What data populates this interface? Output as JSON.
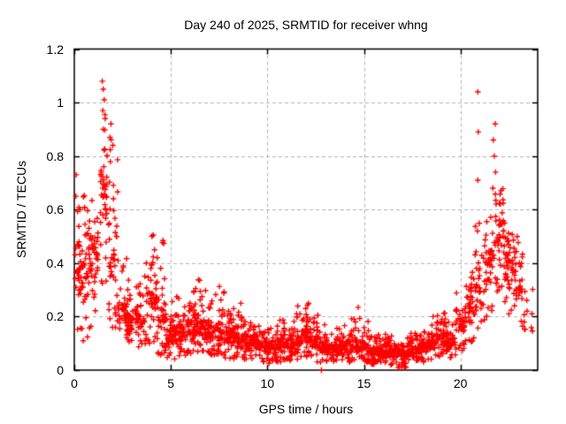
{
  "chart_data": {
    "type": "scatter",
    "title": "Day 240 of 2025, SRMTID for receiver whng",
    "xlabel": "GPS time / hours",
    "ylabel": "SRMTID / TECUs",
    "xlim": [
      0,
      24
    ],
    "ylim": [
      0,
      1.2
    ],
    "xticks": [
      0,
      5,
      10,
      15,
      20
    ],
    "yticks": [
      0,
      0.2,
      0.4,
      0.6,
      0.8,
      1,
      1.2
    ],
    "grid": true,
    "legend": false,
    "marker": "plus",
    "marker_color": "#ff0000",
    "grid_color": "#b3b3b3",
    "axis_color": "#000000",
    "background_color": "#ffffff",
    "series_name": "SRMTID",
    "seed": 20250240,
    "density_bins_comment": "Each bin = [x_start_hr, x_end_hr, n_points, y_min, y_typical_low, y_typical_high, y_max] read from the plotted point cloud",
    "density_bins": [
      [
        0.0,
        0.25,
        22,
        0.13,
        0.2,
        0.45,
        0.62
      ],
      [
        0.25,
        0.75,
        48,
        0.1,
        0.22,
        0.5,
        0.67
      ],
      [
        0.75,
        1.25,
        52,
        0.15,
        0.3,
        0.55,
        0.72
      ],
      [
        1.35,
        1.7,
        42,
        0.32,
        0.5,
        0.88,
        1.08
      ],
      [
        1.75,
        2.25,
        45,
        0.15,
        0.25,
        0.6,
        0.9
      ],
      [
        2.25,
        2.75,
        40,
        0.1,
        0.14,
        0.3,
        0.46
      ],
      [
        2.75,
        3.25,
        40,
        0.08,
        0.12,
        0.26,
        0.38
      ],
      [
        3.25,
        3.75,
        40,
        0.08,
        0.12,
        0.28,
        0.42
      ],
      [
        3.75,
        4.25,
        45,
        0.1,
        0.15,
        0.38,
        0.54
      ],
      [
        4.25,
        4.75,
        45,
        0.05,
        0.1,
        0.3,
        0.5
      ],
      [
        4.75,
        5.25,
        48,
        0.03,
        0.07,
        0.18,
        0.26
      ],
      [
        5.25,
        5.75,
        48,
        0.04,
        0.08,
        0.2,
        0.3
      ],
      [
        5.75,
        6.25,
        48,
        0.05,
        0.08,
        0.22,
        0.32
      ],
      [
        6.25,
        6.75,
        48,
        0.05,
        0.1,
        0.24,
        0.34
      ],
      [
        6.75,
        7.25,
        48,
        0.05,
        0.08,
        0.2,
        0.3
      ],
      [
        7.25,
        7.75,
        48,
        0.05,
        0.08,
        0.2,
        0.33
      ],
      [
        7.75,
        8.25,
        48,
        0.04,
        0.07,
        0.18,
        0.3
      ],
      [
        8.25,
        8.75,
        48,
        0.04,
        0.07,
        0.16,
        0.25
      ],
      [
        8.75,
        9.25,
        48,
        0.04,
        0.06,
        0.15,
        0.23
      ],
      [
        9.25,
        9.75,
        48,
        0.03,
        0.06,
        0.13,
        0.19
      ],
      [
        9.75,
        10.25,
        48,
        0.02,
        0.05,
        0.12,
        0.17
      ],
      [
        10.25,
        10.75,
        48,
        0.03,
        0.05,
        0.12,
        0.19
      ],
      [
        10.75,
        11.25,
        48,
        0.03,
        0.06,
        0.13,
        0.2
      ],
      [
        11.25,
        11.75,
        48,
        0.04,
        0.06,
        0.15,
        0.24
      ],
      [
        11.75,
        12.25,
        52,
        0.04,
        0.07,
        0.18,
        0.28
      ],
      [
        12.25,
        12.75,
        46,
        0.02,
        0.06,
        0.14,
        0.22
      ],
      [
        12.75,
        13.25,
        46,
        0.03,
        0.05,
        0.12,
        0.18
      ],
      [
        13.25,
        13.75,
        46,
        0.03,
        0.05,
        0.11,
        0.16
      ],
      [
        13.75,
        14.25,
        46,
        0.03,
        0.05,
        0.12,
        0.18
      ],
      [
        14.25,
        14.75,
        46,
        0.03,
        0.05,
        0.13,
        0.25
      ],
      [
        14.75,
        15.25,
        46,
        0.03,
        0.05,
        0.12,
        0.2
      ],
      [
        15.25,
        15.75,
        46,
        0.02,
        0.04,
        0.1,
        0.15
      ],
      [
        15.75,
        16.25,
        46,
        0.02,
        0.04,
        0.1,
        0.14
      ],
      [
        16.25,
        16.75,
        46,
        0.02,
        0.04,
        0.09,
        0.13
      ],
      [
        16.75,
        17.25,
        46,
        0.01,
        0.03,
        0.09,
        0.12
      ],
      [
        17.25,
        17.75,
        46,
        0.02,
        0.04,
        0.1,
        0.14
      ],
      [
        17.75,
        18.25,
        46,
        0.03,
        0.05,
        0.11,
        0.16
      ],
      [
        18.25,
        18.75,
        44,
        0.04,
        0.06,
        0.14,
        0.2
      ],
      [
        18.75,
        19.25,
        42,
        0.05,
        0.08,
        0.17,
        0.22
      ],
      [
        19.25,
        19.75,
        40,
        0.04,
        0.06,
        0.13,
        0.18
      ],
      [
        19.75,
        20.25,
        40,
        0.07,
        0.1,
        0.22,
        0.3
      ],
      [
        20.25,
        20.75,
        38,
        0.1,
        0.14,
        0.3,
        0.38
      ],
      [
        20.75,
        21.25,
        34,
        0.15,
        0.2,
        0.38,
        0.55
      ],
      [
        21.25,
        21.75,
        38,
        0.2,
        0.25,
        0.5,
        0.7
      ],
      [
        21.75,
        22.25,
        48,
        0.28,
        0.35,
        0.62,
        0.68
      ],
      [
        22.25,
        22.75,
        44,
        0.2,
        0.28,
        0.48,
        0.56
      ],
      [
        22.75,
        23.25,
        34,
        0.15,
        0.2,
        0.42,
        0.5
      ],
      [
        23.25,
        23.75,
        10,
        0.14,
        0.16,
        0.26,
        0.32
      ]
    ],
    "outliers_comment": "Distinct isolated points readable from the image [x_hr, y_tecus]",
    "outliers": [
      [
        0.1,
        0.73
      ],
      [
        0.08,
        0.65
      ],
      [
        0.3,
        0.6
      ],
      [
        1.45,
        1.08
      ],
      [
        1.5,
        1.05
      ],
      [
        1.55,
        1.01
      ],
      [
        1.48,
        0.97
      ],
      [
        1.6,
        0.94
      ],
      [
        1.9,
        0.92
      ],
      [
        1.85,
        0.87
      ],
      [
        2.0,
        0.84
      ],
      [
        1.7,
        0.8
      ],
      [
        12.8,
        0.0
      ],
      [
        20.9,
        1.04
      ],
      [
        20.92,
        0.89
      ],
      [
        20.9,
        0.71
      ],
      [
        20.88,
        0.52
      ],
      [
        21.8,
        0.92
      ],
      [
        21.7,
        0.86
      ],
      [
        21.75,
        0.8
      ],
      [
        21.82,
        0.74
      ],
      [
        21.68,
        0.68
      ],
      [
        23.3,
        0.18
      ]
    ]
  }
}
